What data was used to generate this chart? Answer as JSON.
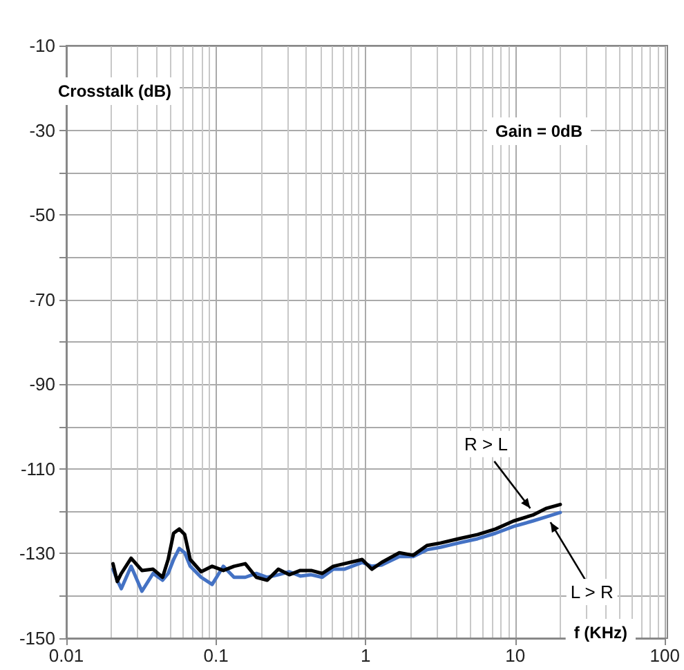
{
  "chart_data": {
    "type": "line",
    "xlabel": "f (KHz)",
    "ylabel": "Crosstalk (dB)",
    "x": [
      0.0205,
      0.0219,
      0.0233,
      0.0271,
      0.032,
      0.038,
      0.044,
      0.0479,
      0.0521,
      0.0568,
      0.0618,
      0.0673,
      0.0796,
      0.0943,
      0.112,
      0.132,
      0.157,
      0.186,
      0.22,
      0.261,
      0.309,
      0.366,
      0.433,
      0.513,
      0.608,
      0.72,
      0.948,
      1.1,
      1.28,
      1.68,
      2.08,
      2.57,
      3.17,
      4.18,
      5.61,
      7.39,
      9.75,
      13.1,
      16.2,
      20.0
    ],
    "series": [
      {
        "color": "#4472c4",
        "values": [
          -133.7,
          -136.3,
          -138.3,
          -133.0,
          -138.9,
          -134.7,
          -136.3,
          -134.7,
          -131.4,
          -128.8,
          -129.8,
          -133.0,
          -135.6,
          -137.3,
          -133.0,
          -135.6,
          -135.6,
          -134.7,
          -135.6,
          -135.0,
          -134.3,
          -135.3,
          -135.0,
          -135.6,
          -133.7,
          -133.7,
          -132.1,
          -133.0,
          -132.7,
          -130.7,
          -130.7,
          -129.1,
          -128.5,
          -127.5,
          -126.5,
          -125.2,
          -123.6,
          -122.3,
          -121.3,
          -120.3
        ]
      },
      {
        "color": "#000000",
        "values": [
          -132.4,
          -136.6,
          -134.7,
          -131.1,
          -134.0,
          -133.7,
          -135.6,
          -131.4,
          -125.2,
          -124.2,
          -125.5,
          -131.4,
          -134.3,
          -133.0,
          -134.0,
          -133.0,
          -132.4,
          -135.6,
          -136.3,
          -133.7,
          -135.0,
          -134.0,
          -134.0,
          -134.7,
          -133.0,
          -132.4,
          -131.4,
          -133.7,
          -132.1,
          -129.8,
          -130.4,
          -128.1,
          -127.5,
          -126.5,
          -125.5,
          -124.2,
          -122.3,
          -120.9,
          -119.3,
          -118.4
        ]
      }
    ],
    "annotations": [
      "Gain = 0dB",
      {
        "text": "R > L",
        "x": 12.6,
        "y": -119.3
      },
      {
        "text": "L > R",
        "x": 17.2,
        "y": -122.6
      }
    ],
    "log": "x",
    "xlim": [
      0.01,
      100
    ],
    "xticks": [
      0.01,
      0.1,
      1,
      10,
      100
    ],
    "ylim": [
      -150,
      -10
    ],
    "yticks": [
      {
        "value": -150,
        "label": "-150"
      },
      {
        "value": -140,
        "label": null
      },
      -130,
      {
        "value": -120,
        "label": null
      },
      -110,
      {
        "value": -100,
        "label": null
      },
      -90,
      {
        "value": -80,
        "label": null
      },
      -70,
      {
        "value": -60,
        "label": null
      },
      -50,
      {
        "value": -40,
        "label": null
      },
      -30,
      {
        "value": -20,
        "label": null
      },
      -10
    ],
    "grid": true,
    "marker": "none",
    "line_style": "solid"
  }
}
